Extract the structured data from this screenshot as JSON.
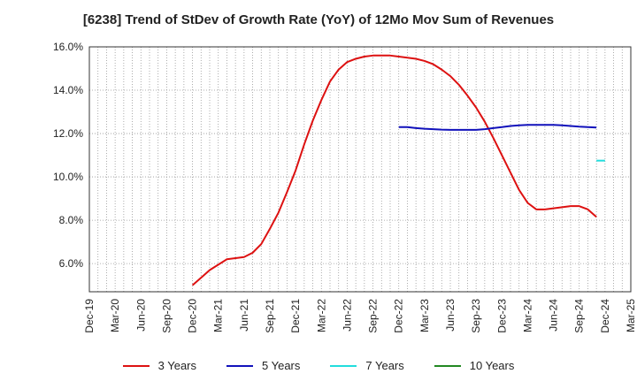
{
  "chart_data": {
    "type": "line",
    "title": "[6238]  Trend of StDev of Growth Rate (YoY) of 12Mo Mov Sum of Revenues",
    "xlabel": "",
    "ylabel": "",
    "ylim": [
      4.7,
      16.0
    ],
    "yticks": [
      6.0,
      8.0,
      10.0,
      12.0,
      14.0,
      16.0
    ],
    "ytick_labels": [
      "6.0%",
      "8.0%",
      "10.0%",
      "12.0%",
      "14.0%",
      "16.0%"
    ],
    "x_labels": [
      "Dec-19",
      "Mar-20",
      "Jun-20",
      "Sep-20",
      "Dec-20",
      "Mar-21",
      "Jun-21",
      "Sep-21",
      "Dec-21",
      "Mar-22",
      "Jun-22",
      "Sep-22",
      "Dec-22",
      "Mar-23",
      "Jun-23",
      "Sep-23",
      "Dec-23",
      "Mar-24",
      "Jun-24",
      "Sep-24",
      "Dec-24",
      "Mar-25"
    ],
    "x_months": 63,
    "series": [
      {
        "name": "3 Years",
        "color": "#dd1111",
        "start_month": 12,
        "values": [
          5.0,
          5.35,
          5.7,
          5.95,
          6.2,
          6.25,
          6.3,
          6.5,
          6.9,
          7.6,
          8.35,
          9.3,
          10.3,
          11.5,
          12.6,
          13.55,
          14.4,
          14.95,
          15.3,
          15.45,
          15.55,
          15.6,
          15.6,
          15.6,
          15.55,
          15.5,
          15.45,
          15.35,
          15.2,
          14.95,
          14.65,
          14.25,
          13.75,
          13.2,
          12.55,
          11.8,
          11.0,
          10.2,
          9.4,
          8.8,
          8.5,
          8.5,
          8.55,
          8.6,
          8.65,
          8.65,
          8.5,
          8.15
        ]
      },
      {
        "name": "5 Years",
        "color": "#1111bb",
        "start_month": 36,
        "values": [
          12.3,
          12.3,
          12.25,
          12.22,
          12.2,
          12.18,
          12.17,
          12.17,
          12.17,
          12.17,
          12.2,
          12.25,
          12.3,
          12.35,
          12.38,
          12.4,
          12.4,
          12.4,
          12.4,
          12.38,
          12.35,
          12.32,
          12.3,
          12.28
        ]
      },
      {
        "name": "7 Years",
        "color": "#22dddd",
        "start_month": 59,
        "values": [
          10.75,
          10.75
        ]
      },
      {
        "name": "10 Years",
        "color": "#228822",
        "start_month": 0,
        "values": []
      }
    ]
  }
}
